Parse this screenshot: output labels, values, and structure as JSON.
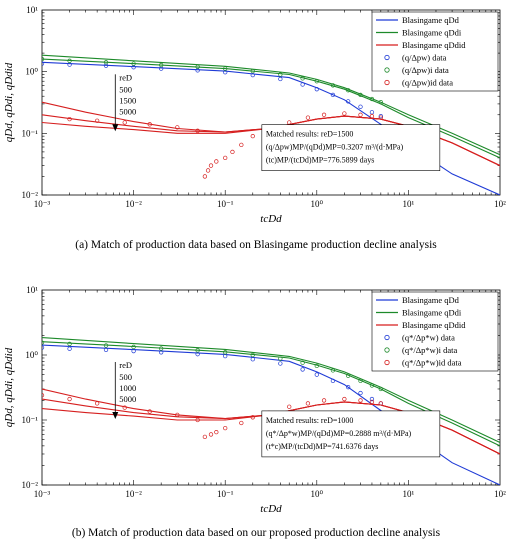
{
  "charts": [
    {
      "caption": "(a)  Match of production data based on Blasingame production decline analysis",
      "ylabel": "qDd, qDdi, qDdid",
      "xlabel": "tcDd",
      "x_ticks": [
        "10⁻³",
        "10⁻²",
        "10⁻¹",
        "10⁰",
        "10¹",
        "10²"
      ],
      "y_ticks": [
        "10¹",
        "10⁰",
        "10⁻¹",
        "10⁻²"
      ],
      "legend": [
        {
          "label": "Blasingame qDd",
          "kind": "line",
          "color": "#1f3bd6"
        },
        {
          "label": "Blasingame qDdi",
          "kind": "line",
          "color": "#1d8a2a"
        },
        {
          "label": "Blasingame qDdid",
          "kind": "line",
          "color": "#d61f1f"
        },
        {
          "label": "(q/Δpw) data",
          "kind": "marker",
          "color": "#1f3bd6"
        },
        {
          "label": "(q/Δpw)i data",
          "kind": "marker",
          "color": "#1d8a2a"
        },
        {
          "label": "(q/Δpw)id data",
          "kind": "marker",
          "color": "#d61f1f"
        }
      ],
      "reD_label": "reD",
      "reD_values": [
        "500",
        "1500",
        "5000"
      ],
      "matched_box": [
        "Matched results: reD=1500",
        "(q/Δpw)MP/(qDd)MP=0.3207 m³/(d·MPa)",
        "(tc)MP/(tcDd)MP=776.5899 days"
      ]
    },
    {
      "caption": "(b)  Match of production data based on our proposed production decline analysis",
      "ylabel": "qDd, qDdi, qDdid",
      "xlabel": "tcDd",
      "x_ticks": [
        "10⁻³",
        "10⁻²",
        "10⁻¹",
        "10⁰",
        "10¹",
        "10²"
      ],
      "y_ticks": [
        "10¹",
        "10⁰",
        "10⁻¹",
        "10⁻²"
      ],
      "legend": [
        {
          "label": "Blasingame qDd",
          "kind": "line",
          "color": "#1f3bd6"
        },
        {
          "label": "Blasingame qDdi",
          "kind": "line",
          "color": "#1d8a2a"
        },
        {
          "label": "Blasingame qDdid",
          "kind": "line",
          "color": "#d61f1f"
        },
        {
          "label": "(q*/Δp*w) data",
          "kind": "marker",
          "color": "#1f3bd6"
        },
        {
          "label": "(q*/Δp*w)i data",
          "kind": "marker",
          "color": "#1d8a2a"
        },
        {
          "label": "(q*/Δp*w)id data",
          "kind": "marker",
          "color": "#d61f1f"
        }
      ],
      "reD_label": "reD",
      "reD_values": [
        "500",
        "1000",
        "5000"
      ],
      "matched_box": [
        "Matched results: reD=1000",
        "(q*/Δp*w)MP/(qDd)MP=0.2888 m³/(d·MPa)",
        "(t*c)MP/(tcDd)MP=741.6376 days"
      ]
    }
  ],
  "chart_data": [
    {
      "type": "scatter",
      "x_scale": "log",
      "y_scale": "log",
      "xlim": [
        0.001,
        100
      ],
      "ylim": [
        0.01,
        10
      ],
      "series": [
        {
          "name": "Blasingame qDd",
          "kind": "line",
          "color": "#1f3bd6",
          "x": [
            0.001,
            0.01,
            0.1,
            0.5,
            1,
            2,
            5,
            10,
            30,
            100
          ],
          "y": [
            1.42,
            1.21,
            1.02,
            0.8,
            0.55,
            0.35,
            0.14,
            0.065,
            0.022,
            0.01
          ]
        },
        {
          "name": "Blasingame qDdi",
          "kind": "line",
          "color": "#1d8a2a",
          "x": [
            0.001,
            0.01,
            0.1,
            0.5,
            1,
            2,
            5,
            10,
            30,
            100
          ],
          "y": [
            1.85,
            1.5,
            1.22,
            0.95,
            0.75,
            0.55,
            0.32,
            0.2,
            0.1,
            0.045
          ]
        },
        {
          "name": "Blasingame qDdi",
          "kind": "line",
          "color": "#1d8a2a",
          "x": [
            0.001,
            0.01,
            0.1,
            0.5,
            1,
            2,
            5,
            10,
            30,
            100
          ],
          "y": [
            1.6,
            1.35,
            1.12,
            0.9,
            0.7,
            0.52,
            0.3,
            0.18,
            0.09,
            0.04
          ]
        },
        {
          "name": "Blasingame qDdid",
          "kind": "line",
          "color": "#d61f1f",
          "x": [
            0.001,
            0.003,
            0.01,
            0.03,
            0.1,
            0.3,
            1,
            2,
            5,
            10,
            30,
            100
          ],
          "y": [
            0.32,
            0.22,
            0.155,
            0.12,
            0.105,
            0.12,
            0.17,
            0.19,
            0.17,
            0.13,
            0.07,
            0.03
          ]
        },
        {
          "name": "Blasingame qDdid",
          "kind": "line",
          "color": "#d61f1f",
          "x": [
            0.001,
            0.003,
            0.01,
            0.03,
            0.1,
            0.3,
            1,
            2,
            5,
            10,
            30,
            100
          ],
          "y": [
            0.2,
            0.16,
            0.13,
            0.11,
            0.105,
            0.12,
            0.17,
            0.19,
            0.17,
            0.13,
            0.07,
            0.03
          ]
        },
        {
          "name": "Blasingame qDdid",
          "kind": "line",
          "color": "#d61f1f",
          "x": [
            0.001,
            0.003,
            0.01,
            0.03,
            0.1,
            0.3,
            1,
            2,
            5,
            10,
            30,
            100
          ],
          "y": [
            0.15,
            0.13,
            0.115,
            0.1,
            0.1,
            0.12,
            0.17,
            0.19,
            0.17,
            0.13,
            0.07,
            0.03
          ]
        },
        {
          "name": "(q/Δpw) data",
          "kind": "marker",
          "color": "#1f3bd6",
          "x": [
            0.001,
            0.002,
            0.005,
            0.01,
            0.02,
            0.05,
            0.1,
            0.2,
            0.4,
            0.7,
            1,
            1.5,
            2.2,
            3,
            4,
            5
          ],
          "y": [
            1.35,
            1.3,
            1.25,
            1.18,
            1.12,
            1.05,
            0.98,
            0.88,
            0.76,
            0.62,
            0.52,
            0.42,
            0.33,
            0.27,
            0.22,
            0.19
          ]
        },
        {
          "name": "(q/Δpw)i data",
          "kind": "marker",
          "color": "#1d8a2a",
          "x": [
            0.001,
            0.002,
            0.005,
            0.01,
            0.02,
            0.05,
            0.1,
            0.2,
            0.4,
            0.7,
            1,
            1.5,
            2.2,
            3,
            4,
            5
          ],
          "y": [
            1.6,
            1.5,
            1.42,
            1.35,
            1.28,
            1.2,
            1.12,
            1.02,
            0.9,
            0.78,
            0.7,
            0.6,
            0.5,
            0.42,
            0.36,
            0.32
          ]
        },
        {
          "name": "(q/Δpw)id data",
          "kind": "marker",
          "color": "#d61f1f",
          "x": [
            0.002,
            0.004,
            0.008,
            0.015,
            0.03,
            0.05,
            0.06,
            0.065,
            0.07,
            0.08,
            0.1,
            0.12,
            0.15,
            0.2,
            0.3,
            0.5,
            0.8,
            1.2,
            2,
            3,
            4,
            5
          ],
          "y": [
            0.17,
            0.16,
            0.15,
            0.14,
            0.125,
            0.11,
            0.02,
            0.025,
            0.03,
            0.035,
            0.04,
            0.05,
            0.065,
            0.09,
            0.12,
            0.15,
            0.18,
            0.2,
            0.21,
            0.2,
            0.19,
            0.18
          ]
        }
      ]
    },
    {
      "type": "scatter",
      "x_scale": "log",
      "y_scale": "log",
      "xlim": [
        0.001,
        100
      ],
      "ylim": [
        0.01,
        10
      ],
      "series": [
        {
          "name": "Blasingame qDd",
          "kind": "line",
          "color": "#1f3bd6",
          "x": [
            0.001,
            0.01,
            0.1,
            0.5,
            1,
            2,
            5,
            10,
            30,
            100
          ],
          "y": [
            1.42,
            1.21,
            1.02,
            0.8,
            0.55,
            0.35,
            0.14,
            0.065,
            0.022,
            0.01
          ]
        },
        {
          "name": "Blasingame qDdi",
          "kind": "line",
          "color": "#1d8a2a",
          "x": [
            0.001,
            0.01,
            0.1,
            0.5,
            1,
            2,
            5,
            10,
            30,
            100
          ],
          "y": [
            1.85,
            1.5,
            1.22,
            0.95,
            0.75,
            0.55,
            0.32,
            0.2,
            0.1,
            0.045
          ]
        },
        {
          "name": "Blasingame qDdi",
          "kind": "line",
          "color": "#1d8a2a",
          "x": [
            0.001,
            0.01,
            0.1,
            0.5,
            1,
            2,
            5,
            10,
            30,
            100
          ],
          "y": [
            1.6,
            1.35,
            1.12,
            0.9,
            0.7,
            0.52,
            0.3,
            0.18,
            0.09,
            0.04
          ]
        },
        {
          "name": "Blasingame qDdid",
          "kind": "line",
          "color": "#d61f1f",
          "x": [
            0.001,
            0.003,
            0.01,
            0.03,
            0.1,
            0.3,
            1,
            2,
            5,
            10,
            30,
            100
          ],
          "y": [
            0.3,
            0.21,
            0.15,
            0.12,
            0.105,
            0.12,
            0.17,
            0.19,
            0.17,
            0.13,
            0.07,
            0.03
          ]
        },
        {
          "name": "Blasingame qDdid",
          "kind": "line",
          "color": "#d61f1f",
          "x": [
            0.001,
            0.003,
            0.01,
            0.03,
            0.1,
            0.3,
            1,
            2,
            5,
            10,
            30,
            100
          ],
          "y": [
            0.21,
            0.165,
            0.13,
            0.112,
            0.105,
            0.12,
            0.17,
            0.19,
            0.17,
            0.13,
            0.07,
            0.03
          ]
        },
        {
          "name": "Blasingame qDdid",
          "kind": "line",
          "color": "#d61f1f",
          "x": [
            0.001,
            0.003,
            0.01,
            0.03,
            0.1,
            0.3,
            1,
            2,
            5,
            10,
            30,
            100
          ],
          "y": [
            0.15,
            0.13,
            0.115,
            0.1,
            0.1,
            0.12,
            0.17,
            0.19,
            0.17,
            0.13,
            0.07,
            0.03
          ]
        },
        {
          "name": "(q*/Δp*w) data",
          "kind": "marker",
          "color": "#1f3bd6",
          "x": [
            0.001,
            0.002,
            0.005,
            0.01,
            0.02,
            0.05,
            0.1,
            0.2,
            0.4,
            0.7,
            1,
            1.5,
            2.2,
            3,
            4,
            5
          ],
          "y": [
            1.3,
            1.25,
            1.2,
            1.15,
            1.1,
            1.03,
            0.96,
            0.86,
            0.74,
            0.6,
            0.5,
            0.4,
            0.32,
            0.26,
            0.21,
            0.18
          ]
        },
        {
          "name": "(q*/Δp*w)i data",
          "kind": "marker",
          "color": "#1d8a2a",
          "x": [
            0.001,
            0.002,
            0.005,
            0.01,
            0.02,
            0.05,
            0.1,
            0.2,
            0.4,
            0.7,
            1,
            1.5,
            2.2,
            3,
            4,
            5
          ],
          "y": [
            1.55,
            1.48,
            1.4,
            1.33,
            1.26,
            1.18,
            1.1,
            1.0,
            0.88,
            0.76,
            0.68,
            0.58,
            0.48,
            0.4,
            0.34,
            0.3
          ]
        },
        {
          "name": "(q*/Δp*w)id data",
          "kind": "marker",
          "color": "#d61f1f",
          "x": [
            0.001,
            0.002,
            0.004,
            0.008,
            0.015,
            0.03,
            0.05,
            0.06,
            0.07,
            0.08,
            0.1,
            0.15,
            0.2,
            0.3,
            0.5,
            0.8,
            1.2,
            2,
            3,
            4,
            5
          ],
          "y": [
            0.24,
            0.21,
            0.18,
            0.155,
            0.135,
            0.12,
            0.1,
            0.055,
            0.06,
            0.065,
            0.075,
            0.09,
            0.11,
            0.13,
            0.16,
            0.18,
            0.2,
            0.21,
            0.2,
            0.19,
            0.18
          ]
        }
      ]
    }
  ]
}
